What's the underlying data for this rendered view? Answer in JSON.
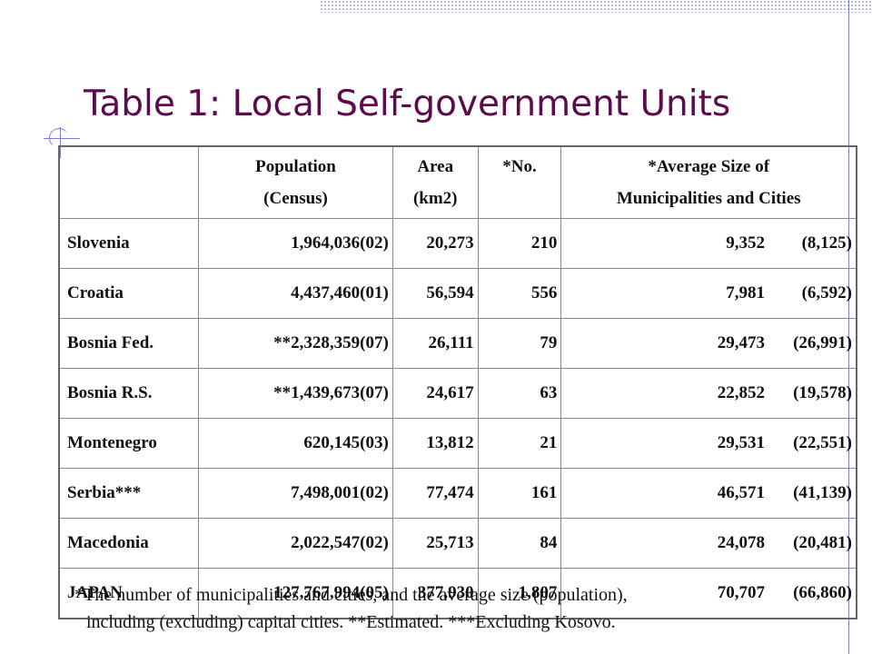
{
  "title": "Table 1: Local Self-government Units",
  "table": {
    "headers": [
      {
        "line1": "",
        "line2": ""
      },
      {
        "line1": "Population",
        "line2": "(Census)"
      },
      {
        "line1": "Area",
        "line2": "(km2)"
      },
      {
        "line1": "*No.",
        "line2": ""
      },
      {
        "line1": "*Average Size of",
        "line2": "Municipalities and Cities"
      }
    ],
    "rows": [
      {
        "country": "Slovenia",
        "population": "1,964,036(02)",
        "area": "20,273",
        "no": "210",
        "avg": "9,352",
        "avg_excl": "(8,125)"
      },
      {
        "country": "Croatia",
        "population": "4,437,460(01)",
        "area": "56,594",
        "no": "556",
        "avg": "7,981",
        "avg_excl": "(6,592)"
      },
      {
        "country": "Bosnia Fed.",
        "population": "**2,328,359(07)",
        "area": "26,111",
        "no": "79",
        "avg": "29,473",
        "avg_excl": "(26,991)"
      },
      {
        "country": "Bosnia R.S.",
        "population": "**1,439,673(07)",
        "area": "24,617",
        "no": "63",
        "avg": "22,852",
        "avg_excl": "(19,578)"
      },
      {
        "country": "Montenegro",
        "population": "620,145(03)",
        "area": "13,812",
        "no": "21",
        "avg": "29,531",
        "avg_excl": "(22,551)"
      },
      {
        "country": "Serbia***",
        "population": "7,498,001(02)",
        "area": "77,474",
        "no": "161",
        "avg": "46,571",
        "avg_excl": "(41,139)"
      },
      {
        "country": "Macedonia",
        "population": "2,022,547(02)",
        "area": "25,713",
        "no": "84",
        "avg": "24,078",
        "avg_excl": "(20,481)"
      },
      {
        "country": "JAPAN",
        "population": "127,767,994(05)",
        "area": "377,930",
        "no": "1,807",
        "avg": "70,707",
        "avg_excl": "(66,860)"
      }
    ]
  },
  "footnote": {
    "line1": "*The number of municipalities and cities, and the average size (population),",
    "line2": "including (excluding) capital cities. **Estimated. ***Excluding Kosovo."
  },
  "colors": {
    "title": "#5c0b4c",
    "accent": "#7b7fd0"
  }
}
